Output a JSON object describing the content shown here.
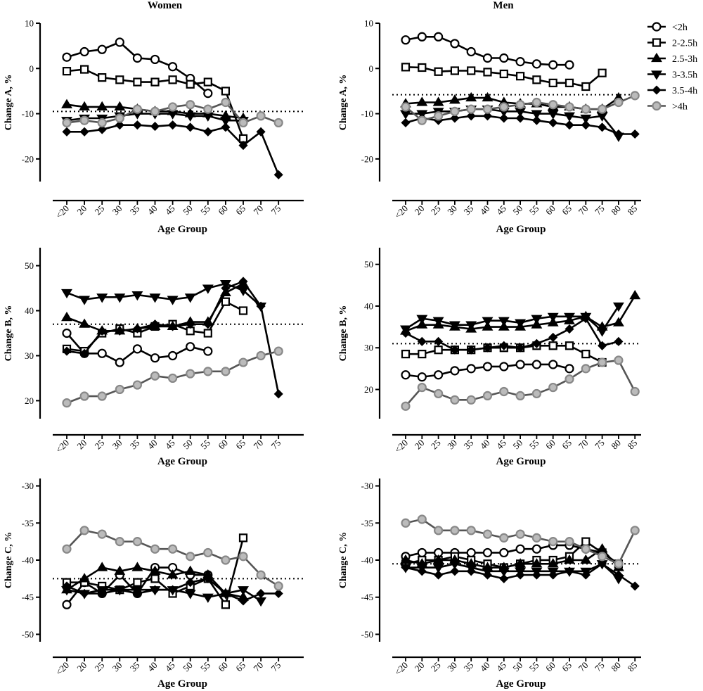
{
  "legend": [
    {
      "label": "<2h",
      "marker": "circle",
      "fill": "#ffffff",
      "stroke": "#000000"
    },
    {
      "label": "2-2.5h",
      "marker": "square",
      "fill": "#ffffff",
      "stroke": "#000000"
    },
    {
      "label": "2.5-3h",
      "marker": "triangle-up",
      "fill": "#000000",
      "stroke": "#000000"
    },
    {
      "label": "3-3.5h",
      "marker": "triangle-down",
      "fill": "#000000",
      "stroke": "#000000"
    },
    {
      "label": "3.5-4h",
      "marker": "diamond",
      "fill": "#000000",
      "stroke": "#000000"
    },
    {
      "label": ">4h",
      "marker": "circle",
      "fill": "#bbbbbb",
      "stroke": "#888888"
    }
  ],
  "chart_data": [
    {
      "type": "line",
      "panel": "women-change-a",
      "title": "Women",
      "xlabel": "Age Group",
      "ylabel": "Change A, %",
      "x": [
        "<20",
        "20",
        "25",
        "30",
        "35",
        "40",
        "45",
        "50",
        "55",
        "60",
        "65",
        "70",
        "75"
      ],
      "yticks": [
        10,
        0,
        -10,
        -20
      ],
      "ylim": [
        -25,
        10
      ],
      "reference_line": -9.5,
      "series": [
        {
          "name": "<2h",
          "values": [
            2.5,
            3.7,
            4.2,
            5.8,
            2.3,
            2.0,
            0.4,
            -2.2,
            -5.5,
            null,
            null,
            null,
            null
          ]
        },
        {
          "name": "2-2.5h",
          "values": [
            -0.6,
            -0.2,
            -2.0,
            -2.5,
            -3.0,
            -3.0,
            -2.5,
            -3.5,
            -3.0,
            -5.0,
            -15.5,
            null,
            null
          ]
        },
        {
          "name": "2.5-3h",
          "values": [
            -8.0,
            -8.5,
            -8.5,
            -8.5,
            -9.0,
            -9.5,
            -9.5,
            -10.0,
            -10.0,
            -10.5,
            -11.0,
            null,
            null
          ]
        },
        {
          "name": "3-3.5h",
          "values": [
            -11.5,
            -11.0,
            -11.0,
            -10.5,
            -10.0,
            -10.0,
            -10.0,
            -10.5,
            -10.5,
            -11.5,
            -11.5,
            null,
            null
          ]
        },
        {
          "name": "3.5-4h",
          "values": [
            -14.0,
            -14.0,
            -13.5,
            -12.5,
            -12.5,
            -12.8,
            -12.5,
            -13.0,
            -14.0,
            -13.0,
            -17.0,
            -14.0,
            -23.5
          ]
        },
        {
          "name": ">4h",
          "values": [
            -12.0,
            -11.5,
            -12.0,
            -11.0,
            -9.0,
            -9.5,
            -8.5,
            -8.0,
            -9.0,
            -7.5,
            -12.0,
            -10.5,
            -12.0
          ]
        }
      ]
    },
    {
      "type": "line",
      "panel": "men-change-a",
      "title": "Men",
      "xlabel": "Age Group",
      "ylabel": "Change A, %",
      "x": [
        "<20",
        "20",
        "25",
        "30",
        "35",
        "40",
        "45",
        "50",
        "55",
        "60",
        "65",
        "70",
        "75",
        "80",
        "85"
      ],
      "yticks": [
        10,
        0,
        -10,
        -20
      ],
      "ylim": [
        -25,
        10
      ],
      "reference_line": -5.8,
      "series": [
        {
          "name": "<2h",
          "values": [
            6.3,
            7.0,
            7.0,
            5.5,
            3.7,
            2.3,
            2.3,
            1.5,
            1.0,
            0.8,
            0.8,
            null,
            null,
            null,
            null
          ]
        },
        {
          "name": "2-2.5h",
          "values": [
            0.3,
            0.2,
            -0.7,
            -0.5,
            -0.5,
            -0.8,
            -1.2,
            -1.7,
            -2.5,
            -3.2,
            -3.2,
            -4.0,
            -1.0,
            null,
            null
          ]
        },
        {
          "name": "2.5-3h",
          "values": [
            -7.8,
            -7.5,
            -7.5,
            -7.0,
            -6.5,
            -6.5,
            -7.5,
            -7.8,
            -7.8,
            -8.5,
            -8.5,
            -9.0,
            -9.0,
            -6.5,
            null
          ]
        },
        {
          "name": "3-3.5h",
          "values": [
            -10.0,
            -10.0,
            -9.5,
            -9.5,
            -9.0,
            -9.0,
            -9.5,
            -9.5,
            -10.0,
            -10.0,
            -10.5,
            -11.0,
            -10.5,
            -15.0,
            null
          ]
        },
        {
          "name": "3.5-4h",
          "values": [
            -12.0,
            -11.0,
            -11.5,
            -11.0,
            -10.5,
            -10.5,
            -11.0,
            -11.0,
            -11.5,
            -12.0,
            -12.5,
            -12.5,
            -13.0,
            -14.5,
            -14.5
          ]
        },
        {
          "name": ">4h",
          "values": [
            -8.5,
            -11.5,
            -10.5,
            -9.5,
            -9.0,
            -9.0,
            -8.5,
            -8.0,
            -7.5,
            -8.0,
            -8.5,
            -9.0,
            -9.0,
            -7.5,
            -6.0
          ]
        }
      ]
    },
    {
      "type": "line",
      "panel": "women-change-b",
      "title": "",
      "xlabel": "Age Group",
      "ylabel": "Change B, %",
      "x": [
        "<20",
        "20",
        "25",
        "30",
        "35",
        "40",
        "45",
        "50",
        "55",
        "60",
        "65",
        "70",
        "75"
      ],
      "yticks": [
        50,
        40,
        30,
        20
      ],
      "ylim": [
        16,
        54
      ],
      "reference_line": 37,
      "series": [
        {
          "name": "<2h",
          "values": [
            35.0,
            30.5,
            30.5,
            28.5,
            31.5,
            29.5,
            30.0,
            32.0,
            31.0,
            null,
            null,
            null,
            null
          ]
        },
        {
          "name": "2-2.5h",
          "values": [
            31.5,
            31.0,
            35.0,
            36.0,
            35.0,
            36.5,
            37.0,
            35.5,
            35.0,
            42.0,
            40.0,
            null,
            null
          ]
        },
        {
          "name": "2.5-3h",
          "values": [
            38.5,
            37.0,
            35.5,
            35.5,
            36.0,
            36.5,
            36.5,
            37.5,
            37.5,
            44.0,
            46.0,
            null,
            null
          ]
        },
        {
          "name": "3-3.5h",
          "values": [
            44.0,
            42.5,
            43.0,
            43.0,
            43.5,
            43.0,
            42.5,
            43.0,
            45.0,
            46.0,
            44.5,
            41.0,
            null
          ]
        },
        {
          "name": "3.5-4h",
          "values": [
            31.0,
            30.5,
            35.5,
            35.5,
            36.0,
            37.0,
            36.5,
            37.0,
            37.0,
            45.0,
            46.5,
            41.0,
            21.5
          ]
        },
        {
          "name": ">4h",
          "values": [
            19.5,
            21.0,
            21.0,
            22.5,
            23.5,
            25.5,
            25.0,
            26.0,
            26.5,
            26.5,
            28.5,
            30.0,
            31.0
          ]
        }
      ]
    },
    {
      "type": "line",
      "panel": "men-change-b",
      "title": "",
      "xlabel": "Age Group",
      "ylabel": "Change B, %",
      "x": [
        "<20",
        "20",
        "25",
        "30",
        "35",
        "40",
        "45",
        "50",
        "55",
        "60",
        "65",
        "70",
        "75",
        "80",
        "85"
      ],
      "yticks": [
        50,
        40,
        30,
        20
      ],
      "ylim": [
        13,
        54
      ],
      "reference_line": 31,
      "series": [
        {
          "name": "<2h",
          "values": [
            23.5,
            23.0,
            23.5,
            24.5,
            25.0,
            25.5,
            25.5,
            26.0,
            26.0,
            26.0,
            25.0,
            null,
            null,
            null,
            null
          ]
        },
        {
          "name": "2-2.5h",
          "values": [
            28.5,
            28.5,
            29.5,
            29.5,
            29.5,
            30.0,
            30.0,
            30.0,
            30.5,
            30.5,
            30.5,
            28.5,
            26.5,
            null,
            null
          ]
        },
        {
          "name": "2.5-3h",
          "values": [
            34.0,
            35.5,
            35.5,
            35.0,
            34.5,
            35.0,
            35.0,
            35.0,
            35.5,
            36.0,
            36.5,
            37.5,
            35.0,
            36.0,
            42.5
          ]
        },
        {
          "name": "3-3.5h",
          "values": [
            34.5,
            37.0,
            36.5,
            35.5,
            35.5,
            36.5,
            36.5,
            36.0,
            37.0,
            37.5,
            37.5,
            37.5,
            34.0,
            40.0,
            null
          ]
        },
        {
          "name": "3.5-4h",
          "values": [
            33.5,
            31.5,
            31.5,
            29.5,
            29.5,
            30.0,
            30.5,
            30.0,
            31.0,
            32.5,
            34.5,
            37.0,
            30.5,
            31.5,
            null
          ]
        },
        {
          "name": ">4h",
          "values": [
            16.0,
            20.5,
            19.0,
            17.5,
            17.5,
            18.5,
            19.5,
            18.5,
            19.0,
            20.5,
            22.5,
            25.0,
            26.5,
            27.0,
            19.5
          ]
        }
      ]
    },
    {
      "type": "line",
      "panel": "women-change-c",
      "title": "",
      "xlabel": "Age Group",
      "ylabel": "Change C, %",
      "x": [
        "<20",
        "20",
        "25",
        "30",
        "35",
        "40",
        "45",
        "50",
        "55",
        "60",
        "65",
        "70",
        "75"
      ],
      "yticks": [
        -30,
        -35,
        -40,
        -45,
        -50
      ],
      "ylim": [
        -51,
        -29
      ],
      "reference_line": -42.5,
      "series": [
        {
          "name": "<2h",
          "values": [
            -46.0,
            -43.0,
            -44.5,
            -42.0,
            -44.5,
            -41.0,
            -41.0,
            -42.0,
            -42.0,
            null,
            null,
            null,
            null
          ]
        },
        {
          "name": "2-2.5h",
          "values": [
            -43.0,
            -43.0,
            -43.5,
            -44.0,
            -43.0,
            -42.5,
            -44.5,
            -43.5,
            -42.5,
            -46.0,
            -37.0,
            null,
            null
          ]
        },
        {
          "name": "2.5-3h",
          "values": [
            -44.0,
            -42.5,
            -41.0,
            -41.5,
            -41.0,
            -41.5,
            -42.0,
            -41.5,
            -42.0,
            -44.5,
            -45.0,
            null,
            null
          ]
        },
        {
          "name": "3-3.5h",
          "values": [
            -44.0,
            -44.5,
            -44.0,
            -44.0,
            -44.0,
            -44.0,
            -44.0,
            -44.5,
            -45.0,
            -44.5,
            -44.0,
            -45.5,
            null
          ]
        },
        {
          "name": "3.5-4h",
          "values": [
            -43.5,
            -44.5,
            -44.5,
            -44.0,
            -44.5,
            -44.0,
            -44.0,
            -43.0,
            -42.5,
            -44.5,
            -45.5,
            -44.5,
            -44.5
          ]
        },
        {
          "name": ">4h",
          "values": [
            -38.5,
            -36.0,
            -36.5,
            -37.5,
            -37.5,
            -38.5,
            -38.5,
            -39.5,
            -39.0,
            -40.0,
            -39.5,
            -42.0,
            -43.5
          ]
        }
      ]
    },
    {
      "type": "line",
      "panel": "men-change-c",
      "title": "",
      "xlabel": "Age Group",
      "ylabel": "Change C, %",
      "x": [
        "<20",
        "20",
        "25",
        "30",
        "35",
        "40",
        "45",
        "50",
        "55",
        "60",
        "65",
        "70",
        "75",
        "80",
        "85"
      ],
      "yticks": [
        -30,
        -35,
        -40,
        -45,
        -50
      ],
      "ylim": [
        -51,
        -29
      ],
      "reference_line": -40.5,
      "series": [
        {
          "name": "<2h",
          "values": [
            -39.5,
            -39.0,
            -39.0,
            -39.0,
            -39.0,
            -39.0,
            -39.0,
            -38.5,
            -38.5,
            -38.0,
            -38.0,
            -38.5,
            -39.0,
            -40.5,
            null
          ]
        },
        {
          "name": "2-2.5h",
          "values": [
            -40.5,
            -40.0,
            -40.0,
            -39.5,
            -40.0,
            -40.5,
            -41.0,
            -40.5,
            -40.0,
            -40.0,
            -39.5,
            -37.5,
            -39.0,
            -40.5,
            null
          ]
        },
        {
          "name": "2.5-3h",
          "values": [
            -40.0,
            -40.5,
            -40.0,
            -40.0,
            -40.5,
            -41.0,
            -41.0,
            -40.5,
            -40.5,
            -40.5,
            -40.0,
            -40.0,
            -38.5,
            -41.0,
            null
          ]
        },
        {
          "name": "3-3.5h",
          "values": [
            -41.0,
            -41.0,
            -41.0,
            -40.5,
            -41.0,
            -41.5,
            -41.5,
            -41.5,
            -41.5,
            -41.5,
            -41.5,
            -41.5,
            -40.5,
            -42.5,
            null
          ]
        },
        {
          "name": "3.5-4h",
          "values": [
            -41.0,
            -41.5,
            -42.0,
            -41.5,
            -41.5,
            -42.0,
            -42.5,
            -42.0,
            -42.0,
            -42.0,
            -41.5,
            -42.0,
            -40.5,
            -42.0,
            -43.5
          ]
        },
        {
          "name": ">4h",
          "values": [
            -35.0,
            -34.5,
            -36.0,
            -36.0,
            -36.0,
            -36.5,
            -37.0,
            -36.5,
            -37.0,
            -37.5,
            -37.5,
            -38.5,
            -39.5,
            -40.5,
            -36.0
          ]
        }
      ]
    }
  ]
}
